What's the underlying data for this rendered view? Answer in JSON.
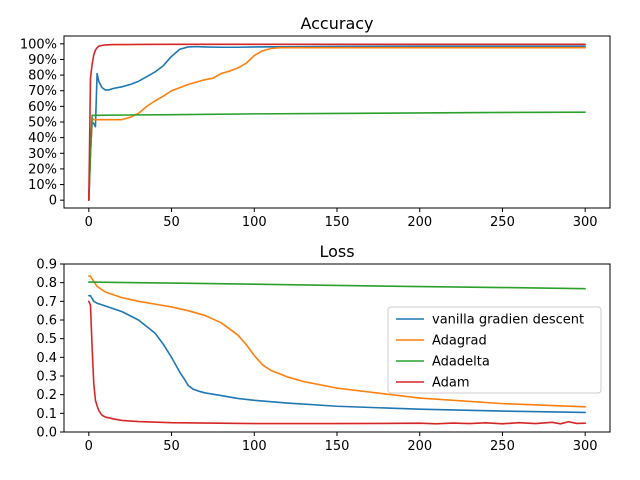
{
  "colors": {
    "vanilla": "#1f77b4",
    "adagrad": "#ff7f0e",
    "adadelta": "#2ca02c",
    "adam": "#d62728"
  },
  "legend_labels": [
    "vanilla gradien descent",
    "Adagrad",
    "Adadelta",
    "Adam"
  ],
  "chart_data": [
    {
      "type": "line",
      "title": "Accuracy",
      "xlabel": "",
      "ylabel": "",
      "xlim": [
        -15,
        315
      ],
      "ylim": [
        -0.05,
        1.05
      ],
      "xticks": [
        0,
        50,
        100,
        150,
        200,
        250,
        300
      ],
      "xtick_labels": [
        "0",
        "50",
        "100",
        "150",
        "200",
        "250",
        "300"
      ],
      "yticks": [
        0,
        0.1,
        0.2,
        0.3,
        0.4,
        0.5,
        0.6,
        0.7,
        0.8,
        0.9,
        1.0
      ],
      "ytick_labels": [
        "0",
        "10%",
        "20%",
        "30%",
        "40%",
        "50%",
        "60%",
        "70%",
        "80%",
        "90%",
        "100%"
      ],
      "grid": false,
      "legend": "none",
      "series": [
        {
          "color_key": "vanilla",
          "x": [
            0,
            1,
            2,
            3,
            4,
            5,
            6,
            8,
            10,
            12,
            15,
            20,
            25,
            30,
            35,
            40,
            45,
            50,
            55,
            60,
            65,
            70,
            80,
            90,
            100,
            150,
            200,
            250,
            300
          ],
          "y": [
            0.0,
            0.3,
            0.5,
            0.49,
            0.47,
            0.81,
            0.76,
            0.72,
            0.705,
            0.705,
            0.715,
            0.725,
            0.74,
            0.76,
            0.79,
            0.82,
            0.86,
            0.92,
            0.965,
            0.98,
            0.982,
            0.98,
            0.978,
            0.978,
            0.98,
            0.983,
            0.985,
            0.985,
            0.985
          ]
        },
        {
          "color_key": "adagrad",
          "x": [
            0,
            1,
            2,
            3,
            5,
            10,
            15,
            20,
            25,
            30,
            35,
            40,
            45,
            50,
            55,
            60,
            65,
            70,
            75,
            80,
            85,
            90,
            95,
            100,
            105,
            110,
            115,
            120,
            150,
            200,
            250,
            300
          ],
          "y": [
            0.0,
            0.3,
            0.52,
            0.515,
            0.515,
            0.515,
            0.515,
            0.515,
            0.53,
            0.555,
            0.6,
            0.635,
            0.665,
            0.7,
            0.72,
            0.74,
            0.755,
            0.77,
            0.78,
            0.81,
            0.825,
            0.845,
            0.875,
            0.925,
            0.955,
            0.97,
            0.975,
            0.975,
            0.975,
            0.975,
            0.975,
            0.975
          ]
        },
        {
          "color_key": "adadelta",
          "x": [
            0,
            1,
            2,
            3,
            50,
            100,
            150,
            200,
            250,
            300
          ],
          "y": [
            0.0,
            0.3,
            0.542,
            0.543,
            0.547,
            0.552,
            0.555,
            0.558,
            0.561,
            0.563
          ]
        },
        {
          "color_key": "adam",
          "x": [
            0,
            1,
            2,
            3,
            4,
            5,
            6,
            8,
            10,
            15,
            20,
            30,
            50,
            100,
            150,
            200,
            250,
            300
          ],
          "y": [
            0.0,
            0.78,
            0.87,
            0.93,
            0.96,
            0.975,
            0.985,
            0.99,
            0.993,
            0.995,
            0.995,
            0.996,
            0.997,
            0.997,
            0.997,
            0.997,
            0.997,
            0.997
          ]
        }
      ]
    },
    {
      "type": "line",
      "title": "Loss",
      "xlabel": "",
      "ylabel": "",
      "xlim": [
        -15,
        315
      ],
      "ylim": [
        0,
        0.9
      ],
      "xticks": [
        0,
        50,
        100,
        150,
        200,
        250,
        300
      ],
      "xtick_labels": [
        "0",
        "50",
        "100",
        "150",
        "200",
        "250",
        "300"
      ],
      "yticks": [
        0,
        0.1,
        0.2,
        0.3,
        0.4,
        0.5,
        0.6,
        0.7,
        0.8,
        0.9
      ],
      "ytick_labels": [
        "0.0",
        "0.1",
        "0.2",
        "0.3",
        "0.4",
        "0.5",
        "0.6",
        "0.7",
        "0.8",
        "0.9"
      ],
      "grid": false,
      "legend": "center-right",
      "series": [
        {
          "name": "vanilla gradien descent",
          "color_key": "vanilla",
          "x": [
            0,
            1,
            2,
            3,
            5,
            10,
            20,
            30,
            40,
            45,
            50,
            55,
            58,
            60,
            63,
            66,
            70,
            80,
            90,
            100,
            120,
            150,
            200,
            250,
            300
          ],
          "y": [
            0.73,
            0.73,
            0.715,
            0.7,
            0.69,
            0.675,
            0.645,
            0.6,
            0.53,
            0.47,
            0.4,
            0.32,
            0.28,
            0.25,
            0.23,
            0.22,
            0.21,
            0.195,
            0.18,
            0.17,
            0.155,
            0.138,
            0.122,
            0.112,
            0.105
          ]
        },
        {
          "name": "Adagrad",
          "color_key": "adagrad",
          "x": [
            0,
            1,
            2,
            5,
            10,
            20,
            30,
            40,
            50,
            60,
            70,
            80,
            90,
            95,
            100,
            105,
            110,
            120,
            130,
            150,
            200,
            250,
            300
          ],
          "y": [
            0.835,
            0.835,
            0.82,
            0.78,
            0.75,
            0.72,
            0.7,
            0.685,
            0.67,
            0.65,
            0.625,
            0.585,
            0.52,
            0.47,
            0.41,
            0.36,
            0.33,
            0.295,
            0.27,
            0.235,
            0.182,
            0.152,
            0.135
          ]
        },
        {
          "name": "Adadelta",
          "color_key": "adadelta",
          "x": [
            0,
            50,
            100,
            150,
            200,
            250,
            300
          ],
          "y": [
            0.803,
            0.798,
            0.792,
            0.785,
            0.779,
            0.774,
            0.768
          ]
        },
        {
          "name": "Adam",
          "color_key": "adam",
          "x": [
            0,
            1,
            2,
            3,
            4,
            5,
            6,
            8,
            10,
            15,
            20,
            30,
            50,
            100,
            150,
            200,
            210,
            220,
            230,
            240,
            250,
            260,
            270,
            280,
            285,
            290,
            295,
            300
          ],
          "y": [
            0.7,
            0.68,
            0.45,
            0.26,
            0.17,
            0.14,
            0.115,
            0.09,
            0.08,
            0.07,
            0.062,
            0.056,
            0.05,
            0.045,
            0.045,
            0.047,
            0.044,
            0.048,
            0.045,
            0.049,
            0.044,
            0.05,
            0.045,
            0.052,
            0.044,
            0.055,
            0.046,
            0.047
          ]
        }
      ]
    }
  ]
}
